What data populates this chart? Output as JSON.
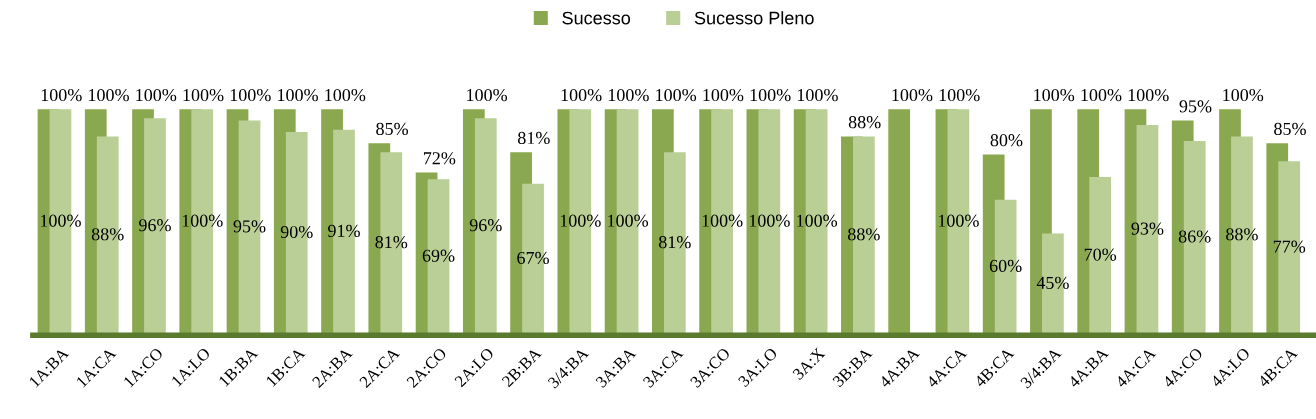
{
  "chart_data": {
    "type": "bar",
    "categories": [
      "1A:BA",
      "1A:CA",
      "1A:CO",
      "1A:LO",
      "1B:BA",
      "1B:CA",
      "2A:BA",
      "2A:CA",
      "2A:CO",
      "2A:LO",
      "2B:BA",
      "3/4:BA",
      "3A:BA",
      "3A:CA",
      "3A:CO",
      "3A:LO",
      "3A:X",
      "3B:BA",
      "4A:BA",
      "4A:CA",
      "4B:CA",
      "3/4:BA",
      "4A:BA",
      "4A:CA",
      "4A:CO",
      "4A:LO",
      "4B:CA"
    ],
    "series": [
      {
        "name": "Sucesso",
        "color": "#8aa84f",
        "values": [
          100,
          100,
          100,
          100,
          100,
          100,
          100,
          85,
          72,
          100,
          81,
          100,
          100,
          100,
          100,
          100,
          100,
          88,
          100,
          100,
          80,
          100,
          100,
          100,
          95,
          100,
          85
        ],
        "value_labels": [
          "100%",
          "100%",
          "100%",
          "100%",
          "100%",
          "100%",
          "100%",
          "85%",
          "72%",
          "100%",
          "81%",
          "100%",
          "100%",
          "100%",
          "100%",
          "100%",
          "100%",
          "88%",
          "100%",
          "100%",
          "80%",
          "100%",
          "100%",
          "100%",
          "95%",
          "100%",
          "85%"
        ]
      },
      {
        "name": "Sucesso Pleno",
        "color": "#b9cf96",
        "values": [
          100,
          88,
          96,
          100,
          95,
          90,
          91,
          81,
          69,
          96,
          67,
          100,
          100,
          81,
          100,
          100,
          100,
          88,
          null,
          100,
          60,
          45,
          70,
          93,
          86,
          88,
          77
        ],
        "value_labels": [
          "100%",
          "88%",
          "96%",
          "100%",
          "95%",
          "90%",
          "91%",
          "81%",
          "69%",
          "96%",
          "67%",
          "100%",
          "100%",
          "81%",
          "100%",
          "100%",
          "100%",
          "88%",
          null,
          "100%",
          "60%",
          "45%",
          "70%",
          "93%",
          "86%",
          "88%",
          "77%"
        ]
      }
    ],
    "legend": "top",
    "grid": false
  }
}
